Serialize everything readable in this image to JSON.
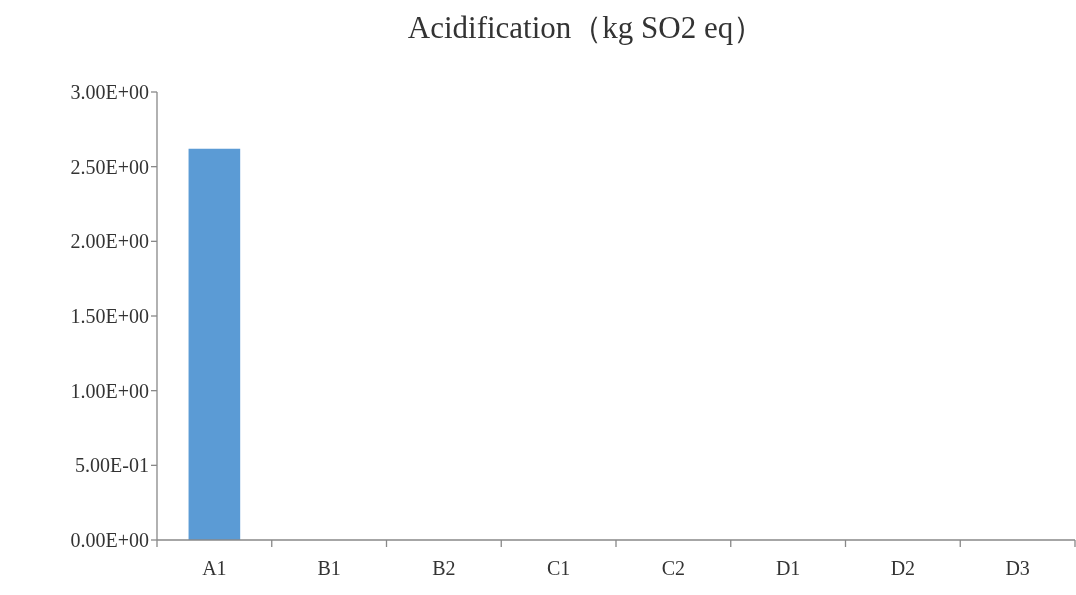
{
  "chart_data": {
    "type": "bar",
    "title": "Acidification（kg SO2 eq）",
    "categories": [
      "A1",
      "B1",
      "B2",
      "C1",
      "C2",
      "D1",
      "D2",
      "D3"
    ],
    "values": [
      2.62,
      0,
      0,
      0,
      0,
      0,
      0,
      0
    ],
    "color": "#5b9bd5",
    "ylim": [
      0,
      3
    ],
    "yticks": [
      {
        "value": 0,
        "label": "0.00E+00"
      },
      {
        "value": 0.5,
        "label": "5.00E-01"
      },
      {
        "value": 1,
        "label": "1.00E+00"
      },
      {
        "value": 1.5,
        "label": "1.50E+00"
      },
      {
        "value": 2,
        "label": "2.00E+00"
      },
      {
        "value": 2.5,
        "label": "2.50E+00"
      },
      {
        "value": 3,
        "label": "3.00E+00"
      }
    ],
    "grid": false
  }
}
